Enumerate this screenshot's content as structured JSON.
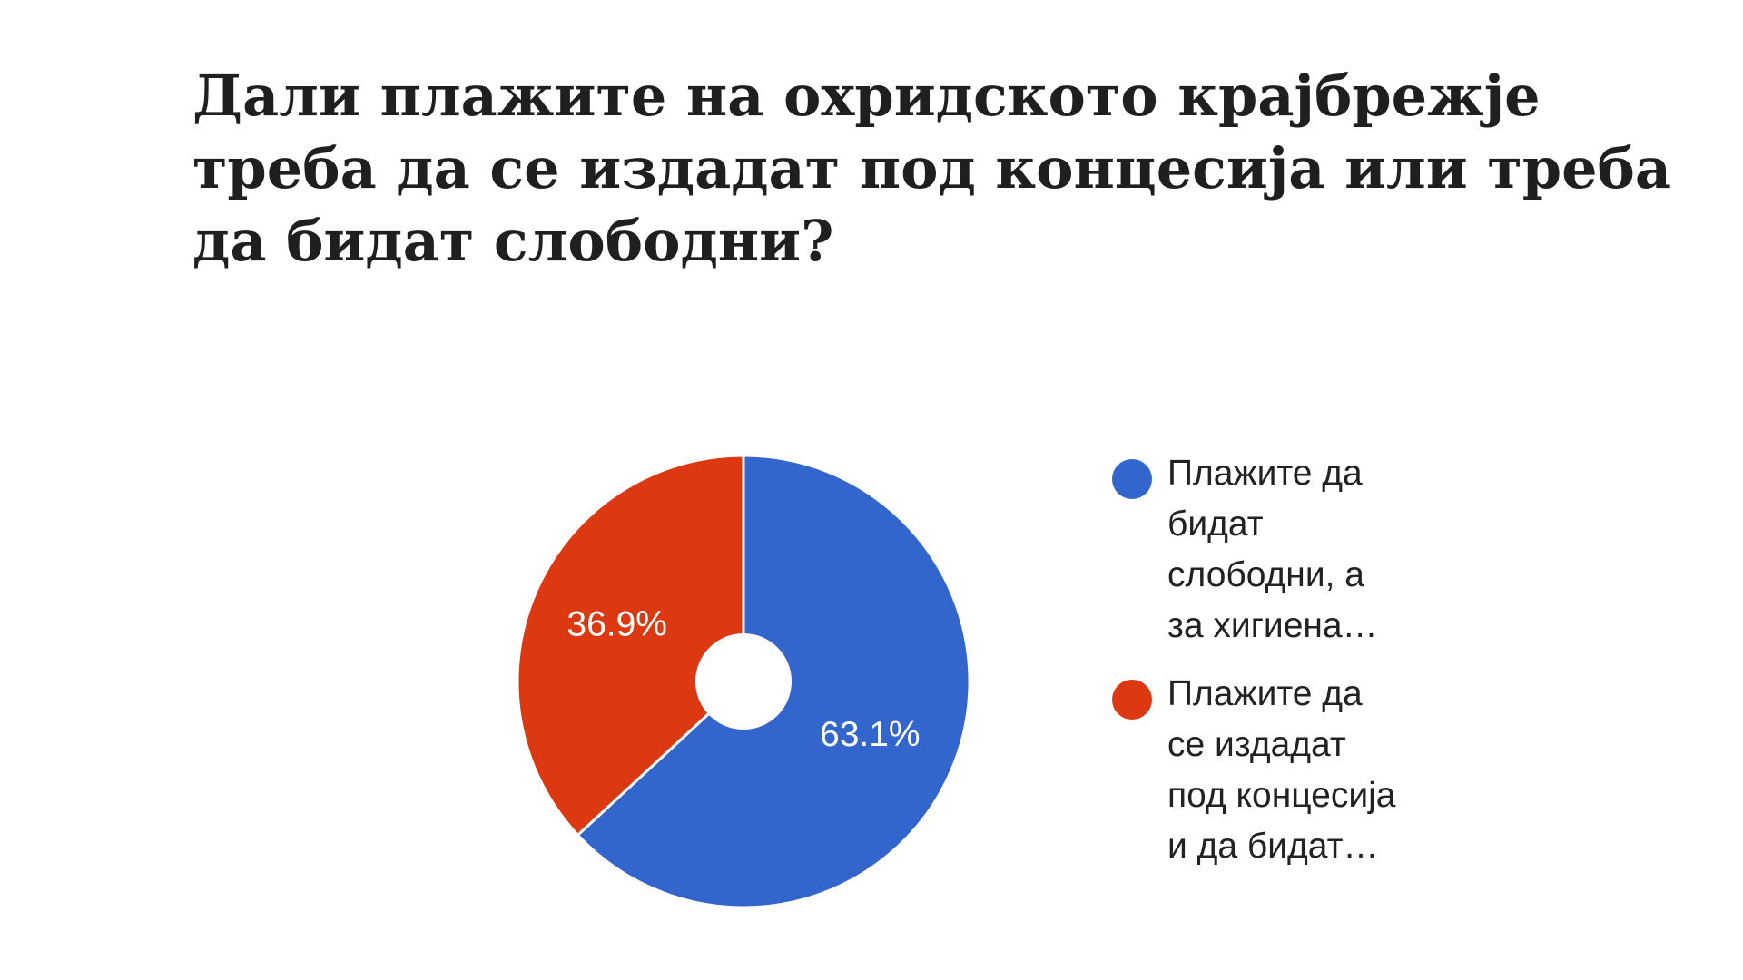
{
  "chart_data": {
    "type": "pie",
    "title": "Дали плажите на охридското крајбрежје треба да се издадат под концесија или треба да бидат слободни?",
    "donut": true,
    "legend_position": "right",
    "slices": [
      {
        "label": "Плажите да\nбидат\nслободни, а\nза хигиена…",
        "value": 63.1,
        "value_label": "63.1%",
        "color": "#3366cc"
      },
      {
        "label": "Плажите да\nсе издадат\nпод концесија\nи да бидат…",
        "value": 36.9,
        "value_label": "36.9%",
        "color": "#dc3912"
      }
    ]
  }
}
